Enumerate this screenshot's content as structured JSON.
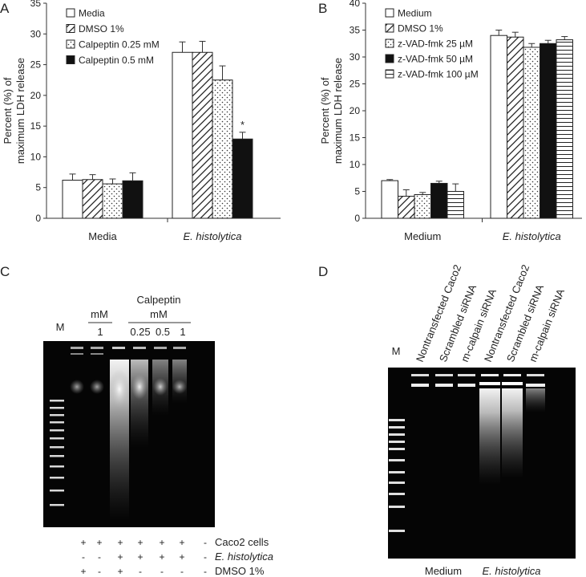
{
  "panelA": {
    "letter": "A",
    "chart_data": {
      "type": "bar",
      "title": "",
      "xlabel": "",
      "ylabel": "Percent (%) of maximum LDH release",
      "ylabel_line1": "Percent (%) of",
      "ylabel_line2": "maximum LDH release",
      "ylim": [
        0,
        35
      ],
      "yticks": [
        0,
        5,
        10,
        15,
        20,
        25,
        30,
        35
      ],
      "ytick_labels": [
        "0",
        "5",
        "10",
        "15",
        "20",
        "25",
        "30",
        "35"
      ],
      "categories": [
        "Media",
        "E. histolytica"
      ],
      "series": [
        {
          "name": "Media",
          "pattern": "open",
          "values": [
            6.2,
            27.0
          ],
          "errors": [
            1.0,
            1.7
          ]
        },
        {
          "name": "DMSO 1%",
          "pattern": "diag",
          "values": [
            6.3,
            27.0
          ],
          "errors": [
            0.8,
            1.8
          ]
        },
        {
          "name": "Calpeptin 0.25 mM",
          "pattern": "dots",
          "values": [
            5.6,
            22.5
          ],
          "errors": [
            0.8,
            2.3
          ]
        },
        {
          "name": "Calpeptin 0.5 mM",
          "pattern": "solid",
          "values": [
            6.1,
            12.9
          ],
          "errors": [
            1.3,
            1.1
          ]
        }
      ],
      "annotations": [
        {
          "category_index": 1,
          "series_index": 3,
          "text": "*"
        }
      ]
    }
  },
  "panelB": {
    "letter": "B",
    "chart_data": {
      "type": "bar",
      "title": "",
      "xlabel": "",
      "ylabel": "Percent (%) of maximum LDH release",
      "ylabel_line1": "Percent (%) of",
      "ylabel_line2": "maximum LDH release",
      "ylim": [
        0,
        40
      ],
      "yticks": [
        0,
        5,
        10,
        15,
        20,
        25,
        30,
        35,
        40
      ],
      "ytick_labels": [
        "0",
        "5",
        "10",
        "15",
        "20",
        "25",
        "30",
        "35",
        "40"
      ],
      "categories": [
        "Medium",
        "E. histolytica"
      ],
      "series": [
        {
          "name": "Medium",
          "pattern": "open",
          "values": [
            7.0,
            34.0
          ],
          "errors": [
            0.2,
            1.0
          ]
        },
        {
          "name": "DMSO 1%",
          "pattern": "diag",
          "values": [
            4.1,
            33.7
          ],
          "errors": [
            1.2,
            0.9
          ]
        },
        {
          "name": "z-VAD-fmk 25 µM",
          "pattern": "dots",
          "values": [
            4.4,
            31.8
          ],
          "errors": [
            0.4,
            0.7
          ]
        },
        {
          "name": "z-VAD-fmk 50 µM",
          "pattern": "solid",
          "values": [
            6.5,
            32.5
          ],
          "errors": [
            0.4,
            0.6
          ]
        },
        {
          "name": "z-VAD-fmk 100 µM",
          "pattern": "hlines",
          "values": [
            5.0,
            33.2
          ],
          "errors": [
            1.4,
            0.6
          ]
        }
      ]
    }
  },
  "panelC": {
    "letter": "C",
    "marker_label": "M",
    "calpeptin_label": "Calpeptin",
    "unit_left": "mM",
    "unit_right": "mM",
    "conc_left": "1",
    "conc_right": [
      "0.25",
      "0.5",
      "1"
    ],
    "rows": [
      {
        "label": "Caco2 cells",
        "italic": false,
        "signs": [
          "+",
          "+",
          "+",
          "+",
          "+",
          "+",
          "-"
        ]
      },
      {
        "label": "E. histolytica",
        "italic": true,
        "signs": [
          "-",
          "-",
          "+",
          "+",
          "+",
          "+",
          "-"
        ]
      },
      {
        "label": "DMSO 1%",
        "italic": false,
        "signs": [
          "+",
          "-",
          "+",
          "-",
          "-",
          "-",
          "-"
        ]
      }
    ]
  },
  "panelD": {
    "letter": "D",
    "marker_label": "M",
    "lanes": [
      "Nontransfected Caco2",
      "Scrambled siRNA",
      "m-calpain siRNA",
      "Nontransfected Caco2",
      "Scrambled siRNA",
      "m-calpain siRNA"
    ],
    "group_left": "Medium",
    "group_right": "E. histolytica"
  },
  "colors": {
    "bar_fill_solid": "#111111",
    "axis": "#333333",
    "gel_background": "#050505"
  }
}
